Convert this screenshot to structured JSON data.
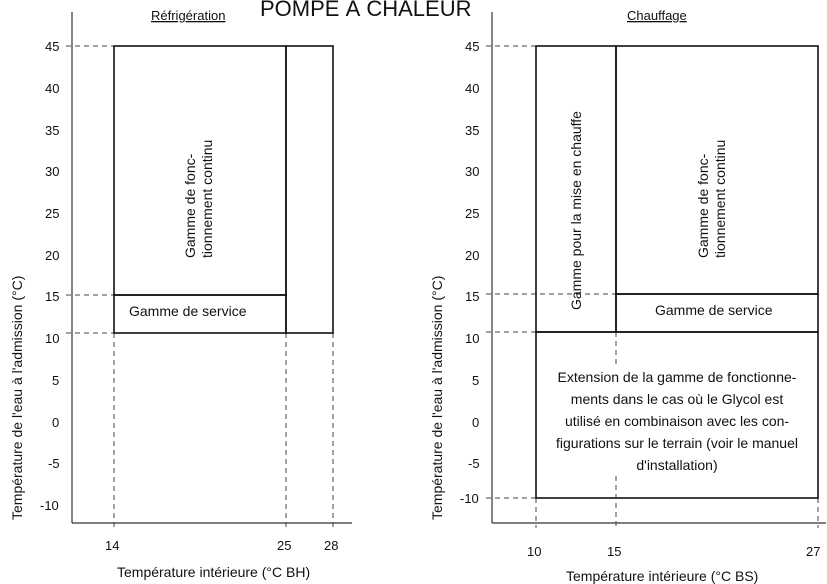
{
  "header": {
    "main_title": "POMPE À CHALEUR"
  },
  "left": {
    "title": "Réfrigération",
    "ylabel": "Température de l'eau à l'admission (°C)",
    "xlabel": "Température intérieure (°C BH)",
    "x_ticks": [
      "14",
      "25",
      "28"
    ],
    "region_continuous": [
      "Gamme de fonc-",
      "tionnement continu"
    ],
    "region_service": "Gamme de service"
  },
  "right": {
    "title": "Chauffage",
    "ylabel": "Température de l'eau à l'admission (°C)",
    "xlabel": "Température intérieure (°C BS)",
    "x_ticks": [
      "10",
      "15",
      "27"
    ],
    "region_warmup": "Gamme pour la mise en chauffe",
    "region_continuous": [
      "Gamme de fonc-",
      "tionnement continu"
    ],
    "region_service": "Gamme de service",
    "region_extension": [
      "Extension de la gamme de fonctionne-",
      "ments dans le cas où le Glycol est",
      "utilisé en combinaison avec les con-",
      "figurations sur le terrain (voir le manuel",
      "d'installation)"
    ]
  },
  "y_ticks": [
    "45",
    "40",
    "35",
    "30",
    "25",
    "20",
    "15",
    "10",
    "5",
    "0",
    "-5",
    "-10"
  ],
  "chart_data": [
    {
      "type": "area",
      "title": "Réfrigération",
      "xlabel": "Température intérieure (°C BH)",
      "ylabel": "Température de l'eau à l'admission (°C)",
      "ylim": [
        -10,
        45
      ],
      "regions": [
        {
          "name": "Gamme de fonctionnement continu",
          "x": [
            14,
            25
          ],
          "y": [
            15,
            45
          ],
          "hatched": true
        },
        {
          "name": "Gamme de service",
          "x": [
            14,
            25
          ],
          "y": [
            10,
            15
          ]
        },
        {
          "name": "",
          "x": [
            25,
            28
          ],
          "y": [
            10,
            45
          ]
        }
      ]
    },
    {
      "type": "area",
      "title": "Chauffage",
      "xlabel": "Température intérieure (°C BS)",
      "ylabel": "Température de l'eau à l'admission (°C)",
      "ylim": [
        -10,
        45
      ],
      "regions": [
        {
          "name": "Gamme pour la mise en chauffe",
          "x": [
            10,
            15
          ],
          "y": [
            10,
            45
          ]
        },
        {
          "name": "Gamme de fonctionnement continu",
          "x": [
            15,
            27
          ],
          "y": [
            15,
            45
          ],
          "hatched": true
        },
        {
          "name": "Gamme de service",
          "x": [
            15,
            27
          ],
          "y": [
            10,
            15
          ]
        },
        {
          "name": "Extension de la gamme de fonctionnements",
          "x": [
            10,
            27
          ],
          "y": [
            -10,
            10
          ]
        }
      ]
    }
  ]
}
